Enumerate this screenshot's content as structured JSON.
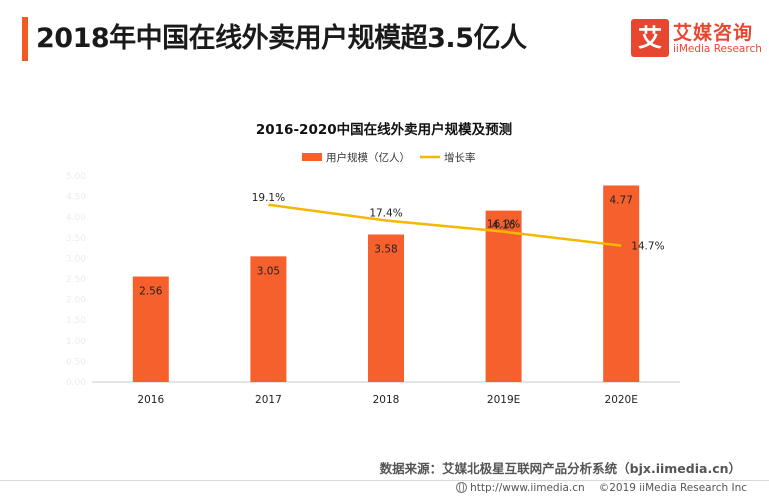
{
  "header": {
    "title": "2018年中国在线外卖用户规模超3.5亿人"
  },
  "logo": {
    "mark_char": "艾",
    "cn": "艾媒咨询",
    "en": "iiMedia Research"
  },
  "chart_data": {
    "type": "bar",
    "title": "2016-2020中国在线外卖用户规模及预测",
    "categories": [
      "2016",
      "2017",
      "2018",
      "2019E",
      "2020E"
    ],
    "series": [
      {
        "name": "用户规模（亿人）",
        "kind": "bar",
        "axis": "left",
        "values": [
          2.56,
          3.05,
          3.58,
          4.16,
          4.77
        ],
        "labels": [
          "2.56",
          "3.05",
          "3.58",
          "4.16",
          "4.77"
        ]
      },
      {
        "name": "增长率",
        "kind": "line",
        "axis": "right",
        "values": [
          null,
          19.1,
          17.4,
          16.2,
          14.7
        ],
        "labels": [
          "",
          "19.1%",
          "17.4%",
          "16.2%",
          "14.7%"
        ]
      }
    ],
    "yticks": [
      "0.00",
      "0.50",
      "1.00",
      "1.50",
      "2.00",
      "2.50",
      "3.00",
      "3.50",
      "4.00",
      "4.50",
      "5.00"
    ],
    "ylim": [
      0,
      5
    ],
    "y2lim": [
      0,
      22.2
    ],
    "xlabel": "",
    "ylabel": "",
    "legend": "top-center",
    "grid": false
  },
  "source": {
    "text": "数据来源：艾媒北极星互联网产品分析系统（bjx.iimedia.cn）"
  },
  "footer": {
    "url": "http://www.iimedia.cn",
    "copyright": "©2019  iiMedia Research  Inc"
  },
  "colors": {
    "accent": "#f15a22",
    "bar": "#f6602d",
    "line": "#f5b800"
  }
}
